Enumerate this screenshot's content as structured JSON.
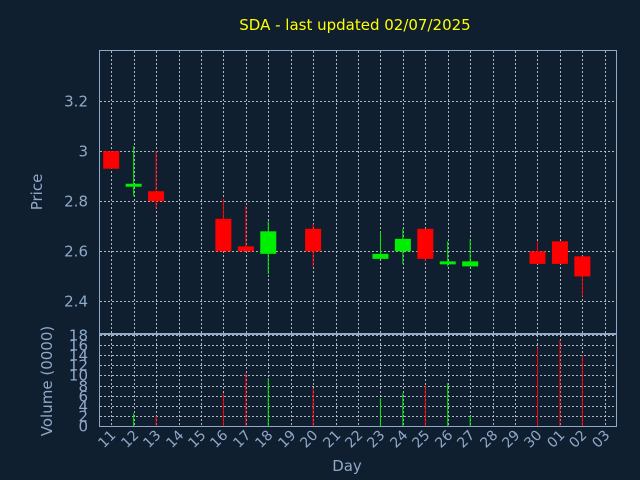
{
  "chart_data": [
    {
      "type": "candlestick",
      "title": "SDA - last updated 02/07/2025",
      "xlabel": "Day",
      "ylabel": "Price",
      "ylim": [
        2.27,
        3.4
      ],
      "yticks": [
        "2.4",
        "2.6",
        "2.8",
        "3",
        "3.2"
      ],
      "grid": true,
      "x_labels": [
        "11",
        "12",
        "13",
        "14",
        "15",
        "16",
        "17",
        "18",
        "19",
        "20",
        "21",
        "22",
        "23",
        "24",
        "25",
        "26",
        "27",
        "28",
        "29",
        "30",
        "01",
        "02",
        "03"
      ],
      "colors": {
        "up": "#00ee00",
        "down": "#ff0000",
        "title": "#ffff00",
        "axis": "#8fa9c8",
        "background": "#0f1f30"
      },
      "candles": [
        {
          "day": "11",
          "open": 3.0,
          "high": 3.0,
          "low": 2.93,
          "close": 2.93
        },
        {
          "day": "12",
          "open": 2.87,
          "high": 3.02,
          "low": 2.82,
          "close": 2.87
        },
        {
          "day": "13",
          "open": 2.84,
          "high": 3.0,
          "low": 2.77,
          "close": 2.8
        },
        {
          "day": "16",
          "open": 2.73,
          "high": 2.81,
          "low": 2.6,
          "close": 2.6
        },
        {
          "day": "17",
          "open": 2.62,
          "high": 2.78,
          "low": 2.6,
          "close": 2.6
        },
        {
          "day": "18",
          "open": 2.59,
          "high": 2.72,
          "low": 2.51,
          "close": 2.68
        },
        {
          "day": "20",
          "open": 2.69,
          "high": 2.71,
          "low": 2.54,
          "close": 2.6
        },
        {
          "day": "23",
          "open": 2.57,
          "high": 2.68,
          "low": 2.57,
          "close": 2.59
        },
        {
          "day": "24",
          "open": 2.6,
          "high": 2.69,
          "low": 2.55,
          "close": 2.65
        },
        {
          "day": "25",
          "open": 2.69,
          "high": 2.69,
          "low": 2.56,
          "close": 2.57
        },
        {
          "day": "26",
          "open": 2.55,
          "high": 2.64,
          "low": 2.54,
          "close": 2.56
        },
        {
          "day": "27",
          "open": 2.54,
          "high": 2.65,
          "low": 2.54,
          "close": 2.56
        },
        {
          "day": "30",
          "open": 2.6,
          "high": 2.64,
          "low": 2.55,
          "close": 2.55
        },
        {
          "day": "01",
          "open": 2.64,
          "high": 2.64,
          "low": 2.55,
          "close": 2.55
        },
        {
          "day": "02",
          "open": 2.58,
          "high": 2.58,
          "low": 2.42,
          "close": 2.5
        }
      ]
    },
    {
      "type": "bar",
      "title": "",
      "xlabel": "Day",
      "ylabel": "Volume (0000)",
      "ylim": [
        0,
        18
      ],
      "yticks": [
        "0",
        "2",
        "4",
        "6",
        "8",
        "10",
        "12",
        "14",
        "16",
        "18"
      ],
      "grid": true,
      "x_labels": [
        "11",
        "12",
        "13",
        "14",
        "15",
        "16",
        "17",
        "18",
        "19",
        "20",
        "21",
        "22",
        "23",
        "24",
        "25",
        "26",
        "27",
        "28",
        "29",
        "30",
        "01",
        "02",
        "03"
      ],
      "bars": [
        {
          "day": "11",
          "value": 0.0,
          "direction": "down"
        },
        {
          "day": "12",
          "value": 2.5,
          "direction": "up"
        },
        {
          "day": "13",
          "value": 2.0,
          "direction": "down"
        },
        {
          "day": "16",
          "value": 6.5,
          "direction": "down"
        },
        {
          "day": "17",
          "value": 10.5,
          "direction": "down"
        },
        {
          "day": "18",
          "value": 9.5,
          "direction": "up"
        },
        {
          "day": "20",
          "value": 7.5,
          "direction": "down"
        },
        {
          "day": "23",
          "value": 5.5,
          "direction": "up"
        },
        {
          "day": "24",
          "value": 6.5,
          "direction": "up"
        },
        {
          "day": "25",
          "value": 8.0,
          "direction": "down"
        },
        {
          "day": "26",
          "value": 8.5,
          "direction": "up"
        },
        {
          "day": "27",
          "value": 2.0,
          "direction": "up"
        },
        {
          "day": "30",
          "value": 15.5,
          "direction": "down"
        },
        {
          "day": "01",
          "value": 17.0,
          "direction": "down"
        },
        {
          "day": "02",
          "value": 14.0,
          "direction": "down"
        }
      ]
    }
  ]
}
